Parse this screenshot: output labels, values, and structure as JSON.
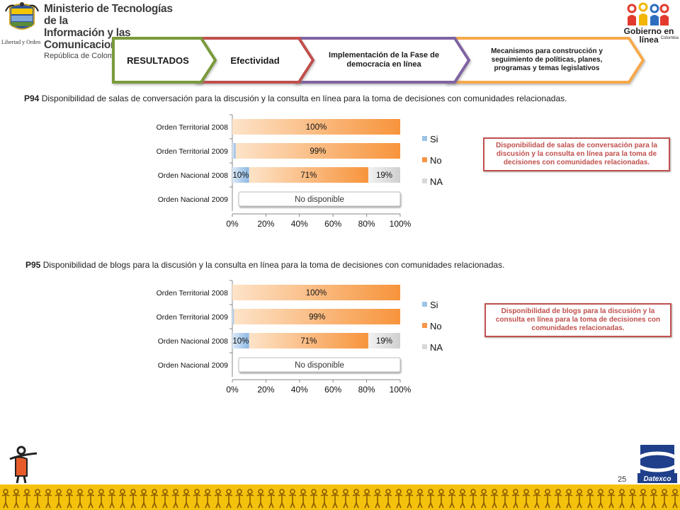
{
  "header": {
    "ministry_line1": "Ministerio de Tecnologías de la",
    "ministry_line2": "Información y las Comunicaciones",
    "ministry_line3": "República de Colombia",
    "crest_caption": "Libertad y Orden",
    "gel_title": "Gobierno en línea",
    "gel_subtitle": "Colombia"
  },
  "nav": {
    "tabs": [
      {
        "label": "RESULTADOS",
        "color": "#7a9a3a"
      },
      {
        "label": "Efectividad",
        "color": "#c0504d"
      },
      {
        "label": "Implementación de la Fase de democracia en línea",
        "color": "#8064a2"
      },
      {
        "label": "Mecanismos para construcción y seguimiento de políticas, planes, programas y temas legislativos",
        "color": "#f7a94b"
      }
    ]
  },
  "colors": {
    "si": "#9cc3e6",
    "no": "#f79646",
    "na": "#d9d9d9",
    "accent_red": "#c0504d"
  },
  "questions": [
    {
      "code": "P94",
      "text": "Disponibilidad de salas de conversación para la  discusión y la consulta en línea para la toma de decisiones  con comunidades relacionadas.",
      "callout": "Disponibilidad de salas de conversación para la  discusión y la consulta en línea para la toma de decisiones  con comunidades relacionadas."
    },
    {
      "code": "P95",
      "text": "Disponibilidad de blogs para la  discusión y la consulta en línea para la toma de decisiones  con comunidades relacionadas.",
      "callout": "Disponibilidad de blogs para la  discusión y la consulta en línea para la toma de decisiones  con comunidades relacionadas."
    }
  ],
  "chart_data": [
    {
      "type": "bar",
      "orientation": "horizontal",
      "stacked": true,
      "categories": [
        "Orden Territorial 2008",
        "Orden Territorial 2009",
        "Orden Nacional 2008",
        "Orden Nacional 2009"
      ],
      "series": [
        {
          "name": "Si",
          "values": [
            0,
            2,
            10,
            0
          ],
          "labels": [
            "",
            "2%",
            "10%",
            ""
          ]
        },
        {
          "name": "No",
          "values": [
            100,
            99,
            71,
            0
          ],
          "labels": [
            "100%",
            "99%",
            "71%",
            ""
          ]
        },
        {
          "name": "NA",
          "values": [
            0,
            0,
            19,
            0
          ],
          "labels": [
            "",
            "",
            "19%",
            ""
          ]
        }
      ],
      "xlim": [
        0,
        100
      ],
      "xticks": [
        "0%",
        "20%",
        "40%",
        "60%",
        "80%",
        "100%"
      ],
      "unavailable_label": "No disponible",
      "legend": "right"
    },
    {
      "type": "bar",
      "orientation": "horizontal",
      "stacked": true,
      "categories": [
        "Orden Territorial 2008",
        "Orden Territorial 2009",
        "Orden Nacional 2008",
        "Orden Nacional 2009"
      ],
      "series": [
        {
          "name": "Si",
          "values": [
            0,
            1,
            10,
            0
          ],
          "labels": [
            "",
            "1%",
            "10%",
            ""
          ]
        },
        {
          "name": "No",
          "values": [
            100,
            99,
            71,
            0
          ],
          "labels": [
            "100%",
            "99%",
            "71%",
            ""
          ]
        },
        {
          "name": "NA",
          "values": [
            0,
            0,
            19,
            0
          ],
          "labels": [
            "",
            "",
            "19%",
            ""
          ]
        }
      ],
      "xlim": [
        0,
        100
      ],
      "xticks": [
        "0%",
        "20%",
        "40%",
        "60%",
        "80%",
        "100%"
      ],
      "unavailable_label": "No disponible",
      "legend": "right"
    }
  ],
  "page": {
    "number": "25",
    "brand": "Datexco"
  }
}
